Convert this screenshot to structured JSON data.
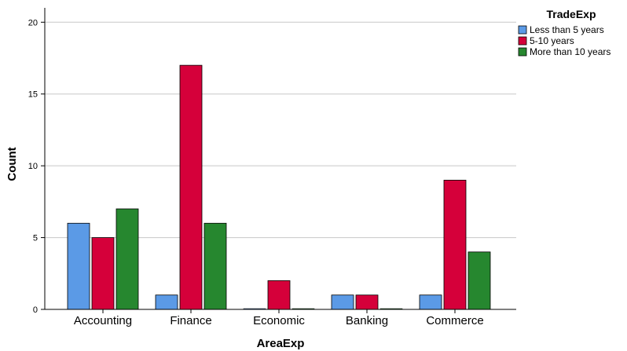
{
  "chart_data": {
    "type": "bar",
    "xlabel": "AreaExp",
    "ylabel": "Count",
    "categories": [
      "Accounting",
      "Finance",
      "Economic",
      "Banking",
      "Commerce"
    ],
    "series": [
      {
        "name": "Less than 5 years",
        "color": "#5b9ae6",
        "values": [
          6,
          1,
          0,
          1,
          1
        ]
      },
      {
        "name": "5-10 years",
        "color": "#d5003a",
        "values": [
          5,
          17,
          2,
          1,
          9
        ]
      },
      {
        "name": "More than 10 years",
        "color": "#26872f",
        "values": [
          7,
          6,
          0,
          0,
          4
        ]
      }
    ],
    "ylim": [
      0,
      21
    ],
    "yticks": [
      0,
      5,
      10,
      15,
      20
    ],
    "grid": true,
    "legend": {
      "title": "TradeExp",
      "position": "top-right"
    }
  }
}
